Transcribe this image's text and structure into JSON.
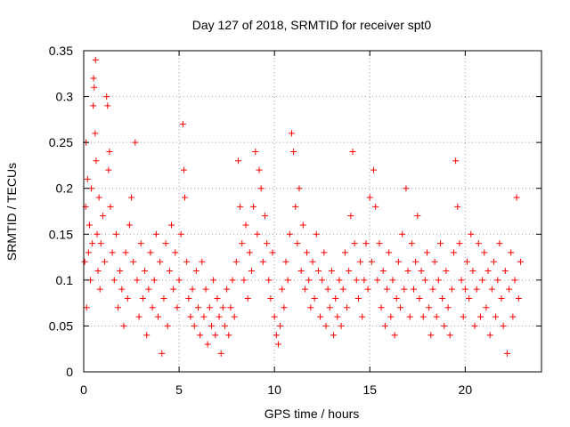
{
  "chart_data": {
    "type": "scatter",
    "title": "Day 127 of 2018, SRMTID for receiver spt0",
    "xlabel": "GPS time / hours",
    "ylabel": "SRMTID / TECUs",
    "xlim": [
      0,
      24
    ],
    "ylim": [
      0,
      0.35
    ],
    "xticks": [
      0,
      5,
      10,
      15,
      20
    ],
    "yticks": [
      0,
      0.05,
      0.1,
      0.15,
      0.2,
      0.25,
      0.3,
      0.35
    ],
    "xtick_labels": [
      "0",
      "5",
      "10",
      "15",
      "20"
    ],
    "ytick_labels": [
      "0",
      "0.05",
      "0.1",
      "0.15",
      "0.2",
      "0.25",
      "0.3",
      "0.35"
    ],
    "grid": true,
    "marker": "+",
    "marker_color": "#ff0000",
    "series": [
      {
        "name": "SRMTID",
        "points": [
          [
            0.05,
            0.12
          ],
          [
            0.1,
            0.18
          ],
          [
            0.12,
            0.25
          ],
          [
            0.15,
            0.07
          ],
          [
            0.2,
            0.21
          ],
          [
            0.25,
            0.13
          ],
          [
            0.3,
            0.16
          ],
          [
            0.35,
            0.1
          ],
          [
            0.4,
            0.2
          ],
          [
            0.45,
            0.14
          ],
          [
            0.5,
            0.29
          ],
          [
            0.52,
            0.32
          ],
          [
            0.55,
            0.31
          ],
          [
            0.6,
            0.26
          ],
          [
            0.62,
            0.34
          ],
          [
            0.65,
            0.23
          ],
          [
            0.7,
            0.15
          ],
          [
            0.75,
            0.11
          ],
          [
            0.8,
            0.19
          ],
          [
            0.85,
            0.09
          ],
          [
            0.9,
            0.14
          ],
          [
            1.0,
            0.17
          ],
          [
            1.1,
            0.12
          ],
          [
            1.2,
            0.3
          ],
          [
            1.25,
            0.29
          ],
          [
            1.3,
            0.22
          ],
          [
            1.35,
            0.24
          ],
          [
            1.4,
            0.18
          ],
          [
            1.5,
            0.13
          ],
          [
            1.6,
            0.1
          ],
          [
            1.7,
            0.15
          ],
          [
            1.8,
            0.07
          ],
          [
            1.9,
            0.11
          ],
          [
            2.0,
            0.09
          ],
          [
            2.1,
            0.05
          ],
          [
            2.2,
            0.13
          ],
          [
            2.3,
            0.08
          ],
          [
            2.4,
            0.16
          ],
          [
            2.5,
            0.19
          ],
          [
            2.6,
            0.12
          ],
          [
            2.7,
            0.25
          ],
          [
            2.8,
            0.1
          ],
          [
            2.9,
            0.06
          ],
          [
            3.0,
            0.14
          ],
          [
            3.1,
            0.08
          ],
          [
            3.2,
            0.11
          ],
          [
            3.3,
            0.04
          ],
          [
            3.4,
            0.09
          ],
          [
            3.5,
            0.13
          ],
          [
            3.6,
            0.07
          ],
          [
            3.7,
            0.1
          ],
          [
            3.8,
            0.15
          ],
          [
            3.9,
            0.06
          ],
          [
            4.0,
            0.12
          ],
          [
            4.1,
            0.02
          ],
          [
            4.2,
            0.08
          ],
          [
            4.3,
            0.14
          ],
          [
            4.4,
            0.05
          ],
          [
            4.5,
            0.11
          ],
          [
            4.6,
            0.16
          ],
          [
            4.7,
            0.09
          ],
          [
            4.8,
            0.13
          ],
          [
            4.9,
            0.07
          ],
          [
            5.0,
            0.1
          ],
          [
            5.1,
            0.15
          ],
          [
            5.2,
            0.27
          ],
          [
            5.25,
            0.22
          ],
          [
            5.3,
            0.19
          ],
          [
            5.4,
            0.12
          ],
          [
            5.5,
            0.08
          ],
          [
            5.6,
            0.06
          ],
          [
            5.7,
            0.09
          ],
          [
            5.8,
            0.05
          ],
          [
            5.9,
            0.11
          ],
          [
            6.0,
            0.07
          ],
          [
            6.1,
            0.04
          ],
          [
            6.2,
            0.12
          ],
          [
            6.3,
            0.06
          ],
          [
            6.4,
            0.09
          ],
          [
            6.5,
            0.03
          ],
          [
            6.6,
            0.07
          ],
          [
            6.7,
            0.05
          ],
          [
            6.8,
            0.1
          ],
          [
            6.9,
            0.04
          ],
          [
            7.0,
            0.08
          ],
          [
            7.1,
            0.06
          ],
          [
            7.2,
            0.02
          ],
          [
            7.3,
            0.07
          ],
          [
            7.4,
            0.05
          ],
          [
            7.5,
            0.09
          ],
          [
            7.6,
            0.04
          ],
          [
            7.7,
            0.07
          ],
          [
            7.8,
            0.1
          ],
          [
            7.9,
            0.06
          ],
          [
            8.0,
            0.12
          ],
          [
            8.1,
            0.23
          ],
          [
            8.2,
            0.18
          ],
          [
            8.3,
            0.14
          ],
          [
            8.4,
            0.1
          ],
          [
            8.5,
            0.16
          ],
          [
            8.6,
            0.08
          ],
          [
            8.7,
            0.13
          ],
          [
            8.8,
            0.11
          ],
          [
            8.9,
            0.18
          ],
          [
            9.0,
            0.24
          ],
          [
            9.1,
            0.15
          ],
          [
            9.2,
            0.22
          ],
          [
            9.3,
            0.2
          ],
          [
            9.4,
            0.12
          ],
          [
            9.5,
            0.17
          ],
          [
            9.6,
            0.14
          ],
          [
            9.7,
            0.1
          ],
          [
            9.8,
            0.08
          ],
          [
            9.9,
            0.13
          ],
          [
            10.0,
            0.06
          ],
          [
            10.1,
            0.04
          ],
          [
            10.2,
            0.03
          ],
          [
            10.3,
            0.05
          ],
          [
            10.4,
            0.09
          ],
          [
            10.5,
            0.07
          ],
          [
            10.6,
            0.12
          ],
          [
            10.7,
            0.1
          ],
          [
            10.8,
            0.15
          ],
          [
            10.9,
            0.26
          ],
          [
            11.0,
            0.24
          ],
          [
            11.1,
            0.18
          ],
          [
            11.2,
            0.14
          ],
          [
            11.3,
            0.2
          ],
          [
            11.4,
            0.11
          ],
          [
            11.5,
            0.16
          ],
          [
            11.6,
            0.09
          ],
          [
            11.7,
            0.13
          ],
          [
            11.8,
            0.1
          ],
          [
            11.9,
            0.07
          ],
          [
            12.0,
            0.12
          ],
          [
            12.1,
            0.08
          ],
          [
            12.2,
            0.15
          ],
          [
            12.3,
            0.11
          ],
          [
            12.4,
            0.06
          ],
          [
            12.5,
            0.1
          ],
          [
            12.6,
            0.13
          ],
          [
            12.7,
            0.05
          ],
          [
            12.8,
            0.09
          ],
          [
            12.9,
            0.07
          ],
          [
            13.0,
            0.11
          ],
          [
            13.1,
            0.04
          ],
          [
            13.2,
            0.08
          ],
          [
            13.3,
            0.06
          ],
          [
            13.4,
            0.1
          ],
          [
            13.5,
            0.05
          ],
          [
            13.6,
            0.09
          ],
          [
            13.7,
            0.13
          ],
          [
            13.8,
            0.07
          ],
          [
            13.9,
            0.11
          ],
          [
            14.0,
            0.17
          ],
          [
            14.1,
            0.24
          ],
          [
            14.2,
            0.14
          ],
          [
            14.3,
            0.1
          ],
          [
            14.4,
            0.08
          ],
          [
            14.5,
            0.12
          ],
          [
            14.6,
            0.06
          ],
          [
            14.7,
            0.1
          ],
          [
            14.8,
            0.14
          ],
          [
            14.9,
            0.09
          ],
          [
            15.0,
            0.19
          ],
          [
            15.1,
            0.12
          ],
          [
            15.2,
            0.22
          ],
          [
            15.3,
            0.18
          ],
          [
            15.4,
            0.1
          ],
          [
            15.5,
            0.14
          ],
          [
            15.6,
            0.07
          ],
          [
            15.7,
            0.11
          ],
          [
            15.8,
            0.05
          ],
          [
            15.9,
            0.09
          ],
          [
            16.0,
            0.13
          ],
          [
            16.1,
            0.06
          ],
          [
            16.2,
            0.1
          ],
          [
            16.3,
            0.04
          ],
          [
            16.4,
            0.08
          ],
          [
            16.5,
            0.12
          ],
          [
            16.6,
            0.07
          ],
          [
            16.7,
            0.15
          ],
          [
            16.8,
            0.09
          ],
          [
            16.9,
            0.2
          ],
          [
            17.0,
            0.11
          ],
          [
            17.1,
            0.06
          ],
          [
            17.2,
            0.14
          ],
          [
            17.3,
            0.09
          ],
          [
            17.4,
            0.12
          ],
          [
            17.5,
            0.17
          ],
          [
            17.6,
            0.08
          ],
          [
            17.7,
            0.11
          ],
          [
            17.8,
            0.06
          ],
          [
            17.9,
            0.1
          ],
          [
            18.0,
            0.13
          ],
          [
            18.1,
            0.07
          ],
          [
            18.2,
            0.04
          ],
          [
            18.3,
            0.09
          ],
          [
            18.4,
            0.12
          ],
          [
            18.5,
            0.06
          ],
          [
            18.6,
            0.1
          ],
          [
            18.7,
            0.14
          ],
          [
            18.8,
            0.08
          ],
          [
            18.9,
            0.05
          ],
          [
            19.0,
            0.11
          ],
          [
            19.1,
            0.07
          ],
          [
            19.2,
            0.04
          ],
          [
            19.3,
            0.09
          ],
          [
            19.4,
            0.13
          ],
          [
            19.5,
            0.23
          ],
          [
            19.6,
            0.18
          ],
          [
            19.7,
            0.14
          ],
          [
            19.8,
            0.1
          ],
          [
            19.9,
            0.06
          ],
          [
            20.0,
            0.09
          ],
          [
            20.1,
            0.12
          ],
          [
            20.2,
            0.08
          ],
          [
            20.3,
            0.15
          ],
          [
            20.4,
            0.11
          ],
          [
            20.5,
            0.05
          ],
          [
            20.6,
            0.09
          ],
          [
            20.7,
            0.14
          ],
          [
            20.8,
            0.06
          ],
          [
            20.9,
            0.1
          ],
          [
            21.0,
            0.13
          ],
          [
            21.1,
            0.07
          ],
          [
            21.2,
            0.11
          ],
          [
            21.3,
            0.04
          ],
          [
            21.4,
            0.09
          ],
          [
            21.5,
            0.12
          ],
          [
            21.6,
            0.06
          ],
          [
            21.7,
            0.1
          ],
          [
            21.8,
            0.14
          ],
          [
            21.9,
            0.08
          ],
          [
            22.0,
            0.05
          ],
          [
            22.1,
            0.11
          ],
          [
            22.2,
            0.02
          ],
          [
            22.3,
            0.09
          ],
          [
            22.4,
            0.13
          ],
          [
            22.5,
            0.06
          ],
          [
            22.6,
            0.1
          ],
          [
            22.7,
            0.19
          ],
          [
            22.8,
            0.08
          ],
          [
            22.9,
            0.12
          ]
        ]
      }
    ]
  }
}
